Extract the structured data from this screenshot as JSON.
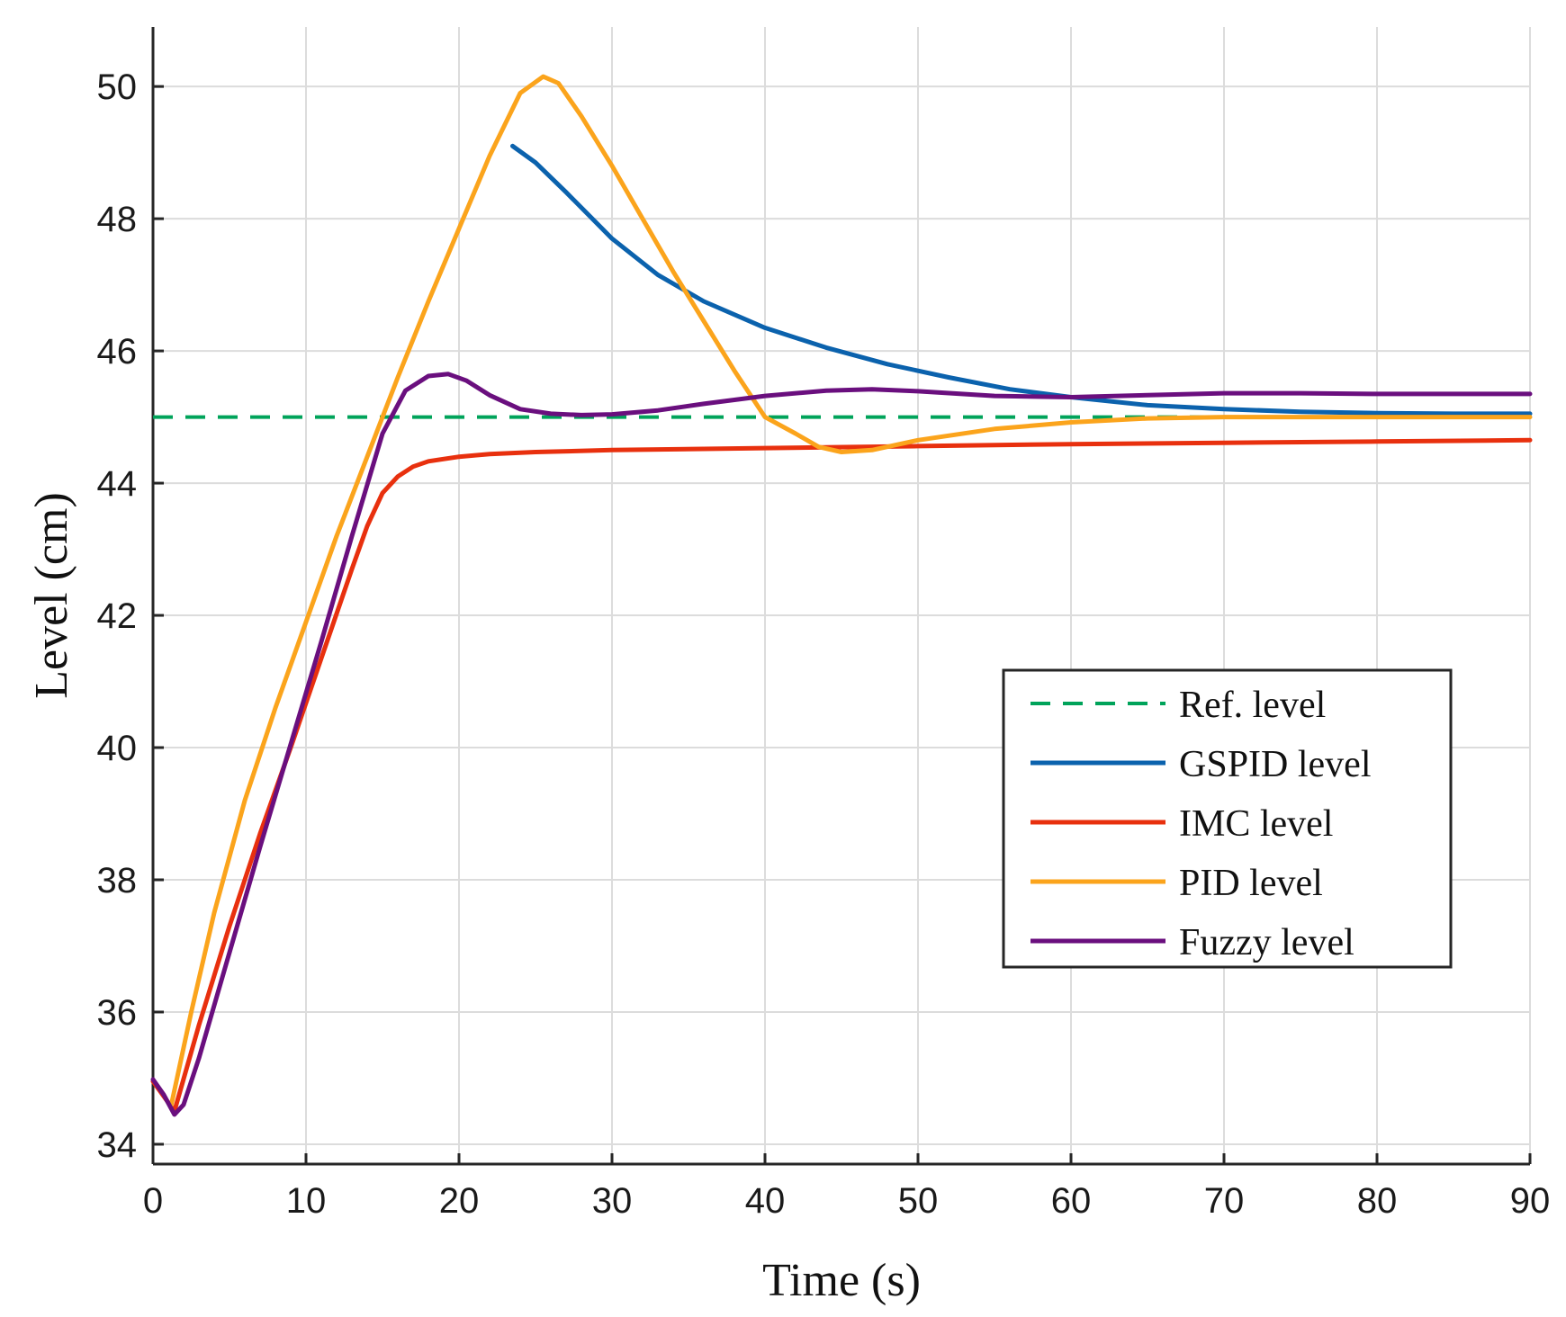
{
  "chart_data": {
    "type": "line",
    "title": "",
    "xlabel": "Time (s)",
    "ylabel": "Level (cm)",
    "xlim": [
      0,
      90
    ],
    "ylim": [
      33.7,
      50.9
    ],
    "xticks": [
      0,
      10,
      20,
      30,
      40,
      50,
      60,
      70,
      80,
      90
    ],
    "yticks": [
      34,
      36,
      38,
      40,
      42,
      44,
      46,
      48,
      50
    ],
    "grid": true,
    "legend_position": "lower-right",
    "series": [
      {
        "name": "Ref. level",
        "color": "#00a35a",
        "style": "dashed",
        "x": [
          0,
          90
        ],
        "y": [
          45,
          45
        ]
      },
      {
        "name": "GSPID level",
        "color": "#0b62ad",
        "style": "solid",
        "x": [
          23.5,
          25,
          27,
          30,
          33,
          36,
          40,
          44,
          48,
          52,
          56,
          60,
          65,
          70,
          75,
          80,
          85,
          90
        ],
        "y": [
          49.1,
          48.85,
          48.4,
          47.7,
          47.15,
          46.75,
          46.35,
          46.05,
          45.8,
          45.6,
          45.42,
          45.3,
          45.18,
          45.12,
          45.08,
          45.06,
          45.05,
          45.05
        ]
      },
      {
        "name": "IMC level",
        "color": "#e8300e",
        "style": "solid",
        "x": [
          0,
          1.4,
          3,
          5,
          7,
          9,
          11,
          13,
          14,
          15,
          16,
          17,
          18,
          20,
          22,
          25,
          30,
          40,
          50,
          60,
          70,
          80,
          90
        ],
        "y": [
          34.95,
          34.5,
          35.8,
          37.3,
          38.7,
          40.0,
          41.35,
          42.7,
          43.35,
          43.85,
          44.1,
          44.25,
          44.33,
          44.4,
          44.44,
          44.47,
          44.5,
          44.53,
          44.56,
          44.59,
          44.61,
          44.63,
          44.65
        ]
      },
      {
        "name": "PID level",
        "color": "#fba41c",
        "style": "solid",
        "x": [
          1.2,
          2.5,
          4,
          6,
          8,
          10,
          12,
          14,
          16,
          18,
          20,
          22,
          24,
          25.5,
          26.5,
          28,
          30,
          32,
          34,
          36,
          38,
          40,
          42,
          43.5,
          45,
          47,
          50,
          55,
          60,
          65,
          70,
          80,
          90
        ],
        "y": [
          34.6,
          36.0,
          37.5,
          39.2,
          40.6,
          41.9,
          43.2,
          44.4,
          45.6,
          46.75,
          47.85,
          48.95,
          49.9,
          50.15,
          50.05,
          49.55,
          48.8,
          48.0,
          47.2,
          46.45,
          45.7,
          45.0,
          44.75,
          44.55,
          44.47,
          44.5,
          44.65,
          44.82,
          44.92,
          44.98,
          45.0,
          45.0,
          45.0
        ]
      },
      {
        "name": "Fuzzy level",
        "color": "#6a0f7e",
        "style": "solid",
        "x": [
          0,
          0.7,
          1.4,
          2,
          3,
          5,
          7,
          9,
          11,
          13,
          15,
          16.5,
          18,
          19.3,
          20.5,
          22,
          24,
          26,
          28,
          30,
          33,
          36,
          40,
          44,
          47,
          50,
          55,
          60,
          65,
          70,
          75,
          80,
          85,
          90
        ],
        "y": [
          34.98,
          34.75,
          34.45,
          34.6,
          35.3,
          36.9,
          38.5,
          40.05,
          41.6,
          43.2,
          44.75,
          45.4,
          45.62,
          45.65,
          45.55,
          45.33,
          45.12,
          45.05,
          45.03,
          45.04,
          45.1,
          45.2,
          45.32,
          45.4,
          45.42,
          45.39,
          45.32,
          45.3,
          45.33,
          45.36,
          45.36,
          45.35,
          45.35,
          45.35
        ]
      }
    ]
  }
}
